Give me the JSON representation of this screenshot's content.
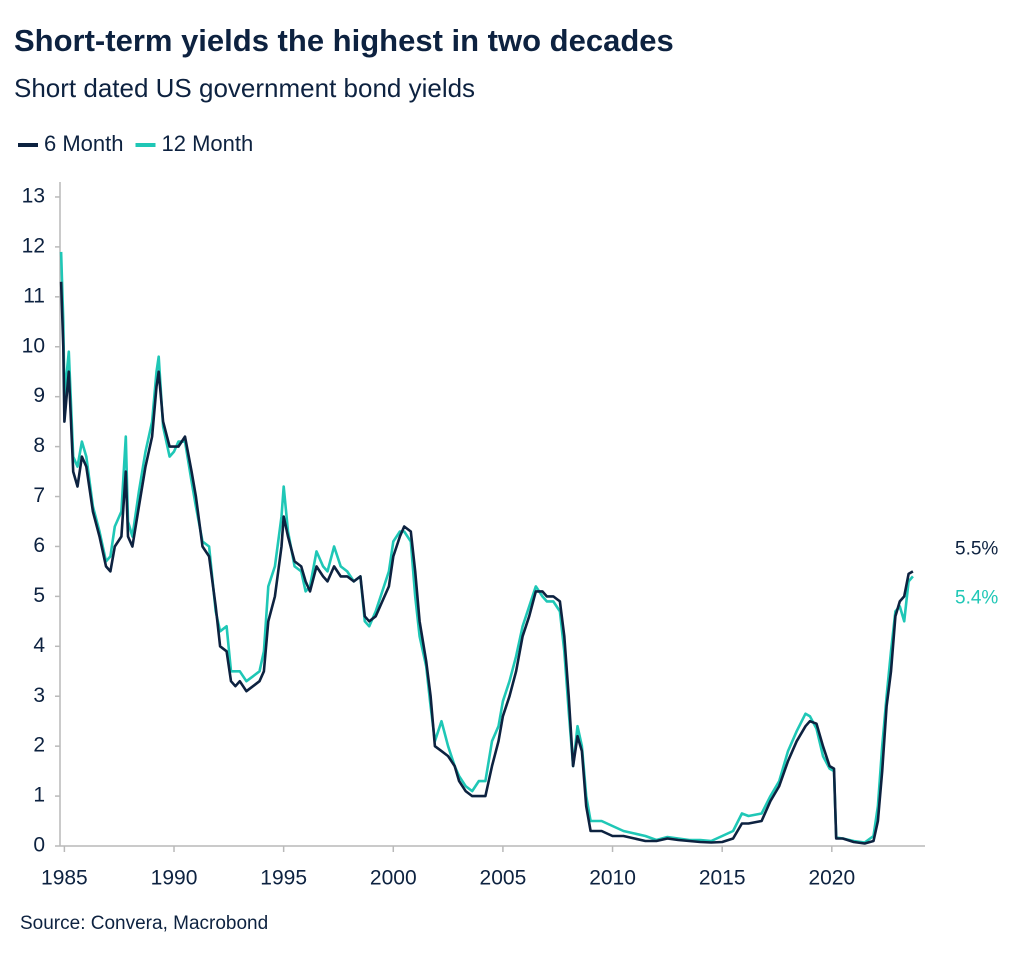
{
  "chart_data": {
    "type": "line",
    "title": "Short-term yields the highest in two decades",
    "subtitle": "Short dated US government bond yields",
    "source": "Source: Convera, Macrobond",
    "xlim": [
      1984.8,
      2024.25
    ],
    "xticks": [
      1985,
      1990,
      1995,
      2000,
      2005,
      2010,
      2015,
      2020
    ],
    "ylim": [
      0,
      13.3
    ],
    "yticks": [
      0,
      1,
      2,
      3,
      4,
      5,
      6,
      7,
      8,
      9,
      10,
      11,
      12,
      13
    ],
    "grid": false,
    "legend": "top-left",
    "x": [
      1984.85,
      1984.95,
      1985.0,
      1985.2,
      1985.4,
      1985.6,
      1985.8,
      1986.0,
      1986.3,
      1986.6,
      1986.9,
      1987.1,
      1987.3,
      1987.6,
      1987.8,
      1987.9,
      1988.1,
      1988.4,
      1988.7,
      1989.0,
      1989.2,
      1989.3,
      1989.5,
      1989.8,
      1990.0,
      1990.2,
      1990.5,
      1990.8,
      1991.0,
      1991.3,
      1991.6,
      1991.9,
      1992.1,
      1992.4,
      1992.6,
      1992.8,
      1993.0,
      1993.3,
      1993.6,
      1993.9,
      1994.1,
      1994.3,
      1994.6,
      1994.9,
      1995.0,
      1995.2,
      1995.5,
      1995.8,
      1996.0,
      1996.2,
      1996.5,
      1996.8,
      1997.0,
      1997.3,
      1997.6,
      1997.9,
      1998.2,
      1998.5,
      1998.7,
      1998.9,
      1999.2,
      1999.5,
      1999.8,
      2000.0,
      2000.3,
      2000.5,
      2000.8,
      2001.0,
      2001.2,
      2001.5,
      2001.7,
      2001.9,
      2002.2,
      2002.5,
      2002.8,
      2003.0,
      2003.3,
      2003.6,
      2003.9,
      2004.2,
      2004.5,
      2004.8,
      2005.0,
      2005.3,
      2005.6,
      2005.9,
      2006.2,
      2006.5,
      2006.8,
      2007.0,
      2007.3,
      2007.6,
      2007.8,
      2008.0,
      2008.2,
      2008.4,
      2008.6,
      2008.8,
      2009.0,
      2009.5,
      2010.0,
      2010.5,
      2011.0,
      2011.5,
      2012.0,
      2012.5,
      2013.0,
      2013.5,
      2014.0,
      2014.5,
      2015.0,
      2015.5,
      2015.9,
      2016.2,
      2016.8,
      2017.2,
      2017.6,
      2018.0,
      2018.4,
      2018.8,
      2019.0,
      2019.3,
      2019.6,
      2019.9,
      2020.1,
      2020.2,
      2020.5,
      2021.0,
      2021.5,
      2021.9,
      2022.1,
      2022.3,
      2022.5,
      2022.7,
      2022.9,
      2023.1,
      2023.3,
      2023.5,
      2023.7
    ],
    "series": [
      {
        "name": "6 Month",
        "color": "#0d2240",
        "end_label": "5.5%",
        "values": [
          11.3,
          10.0,
          8.5,
          9.5,
          7.5,
          7.2,
          7.8,
          7.6,
          6.7,
          6.2,
          5.6,
          5.5,
          6.0,
          6.2,
          7.5,
          6.2,
          6.0,
          6.8,
          7.6,
          8.2,
          9.2,
          9.5,
          8.5,
          8.0,
          8.0,
          8.0,
          8.2,
          7.5,
          7.0,
          6.0,
          5.8,
          4.8,
          4.0,
          3.9,
          3.3,
          3.2,
          3.3,
          3.1,
          3.2,
          3.3,
          3.5,
          4.5,
          5.0,
          6.0,
          6.6,
          6.2,
          5.7,
          5.6,
          5.3,
          5.1,
          5.6,
          5.4,
          5.3,
          5.6,
          5.4,
          5.4,
          5.3,
          5.4,
          4.6,
          4.5,
          4.6,
          4.9,
          5.2,
          5.8,
          6.2,
          6.4,
          6.3,
          5.5,
          4.5,
          3.7,
          3.0,
          2.0,
          1.9,
          1.8,
          1.6,
          1.3,
          1.1,
          1.0,
          1.0,
          1.0,
          1.6,
          2.1,
          2.6,
          3.0,
          3.5,
          4.2,
          4.6,
          5.1,
          5.1,
          5.0,
          5.0,
          4.9,
          4.2,
          3.0,
          1.6,
          2.2,
          1.9,
          0.8,
          0.3,
          0.3,
          0.2,
          0.2,
          0.15,
          0.1,
          0.1,
          0.15,
          0.12,
          0.1,
          0.08,
          0.07,
          0.08,
          0.15,
          0.45,
          0.45,
          0.5,
          0.9,
          1.2,
          1.7,
          2.1,
          2.4,
          2.5,
          2.45,
          2.0,
          1.6,
          1.55,
          0.15,
          0.15,
          0.08,
          0.05,
          0.1,
          0.5,
          1.5,
          2.8,
          3.5,
          4.6,
          4.9,
          5.0,
          5.45,
          5.5
        ]
      },
      {
        "name": "12 Month",
        "color": "#1fc7b6",
        "end_label": "5.4%",
        "values": [
          11.9,
          10.5,
          9.0,
          9.9,
          7.8,
          7.6,
          8.1,
          7.8,
          6.8,
          6.3,
          5.7,
          5.8,
          6.4,
          6.7,
          8.2,
          6.5,
          6.2,
          7.1,
          7.9,
          8.5,
          9.5,
          9.8,
          8.4,
          7.8,
          7.9,
          8.1,
          8.1,
          7.3,
          6.8,
          6.1,
          6.0,
          4.7,
          4.3,
          4.4,
          3.5,
          3.5,
          3.5,
          3.3,
          3.4,
          3.5,
          3.9,
          5.2,
          5.6,
          6.6,
          7.2,
          6.3,
          5.6,
          5.5,
          5.1,
          5.2,
          5.9,
          5.6,
          5.5,
          6.0,
          5.6,
          5.5,
          5.3,
          5.4,
          4.5,
          4.4,
          4.7,
          5.1,
          5.5,
          6.1,
          6.3,
          6.3,
          6.1,
          5.0,
          4.2,
          3.6,
          2.8,
          2.1,
          2.5,
          2.0,
          1.6,
          1.4,
          1.2,
          1.1,
          1.3,
          1.3,
          2.1,
          2.4,
          2.9,
          3.3,
          3.8,
          4.4,
          4.8,
          5.2,
          5.0,
          4.9,
          4.9,
          4.7,
          3.9,
          2.7,
          1.6,
          2.4,
          2.0,
          1.0,
          0.5,
          0.5,
          0.4,
          0.3,
          0.25,
          0.2,
          0.12,
          0.18,
          0.15,
          0.12,
          0.12,
          0.1,
          0.2,
          0.3,
          0.65,
          0.6,
          0.65,
          1.0,
          1.3,
          1.9,
          2.3,
          2.65,
          2.6,
          2.35,
          1.8,
          1.55,
          1.5,
          0.17,
          0.15,
          0.1,
          0.07,
          0.2,
          0.8,
          2.0,
          3.0,
          3.9,
          4.7,
          4.8,
          4.5,
          5.3,
          5.4
        ]
      }
    ]
  }
}
